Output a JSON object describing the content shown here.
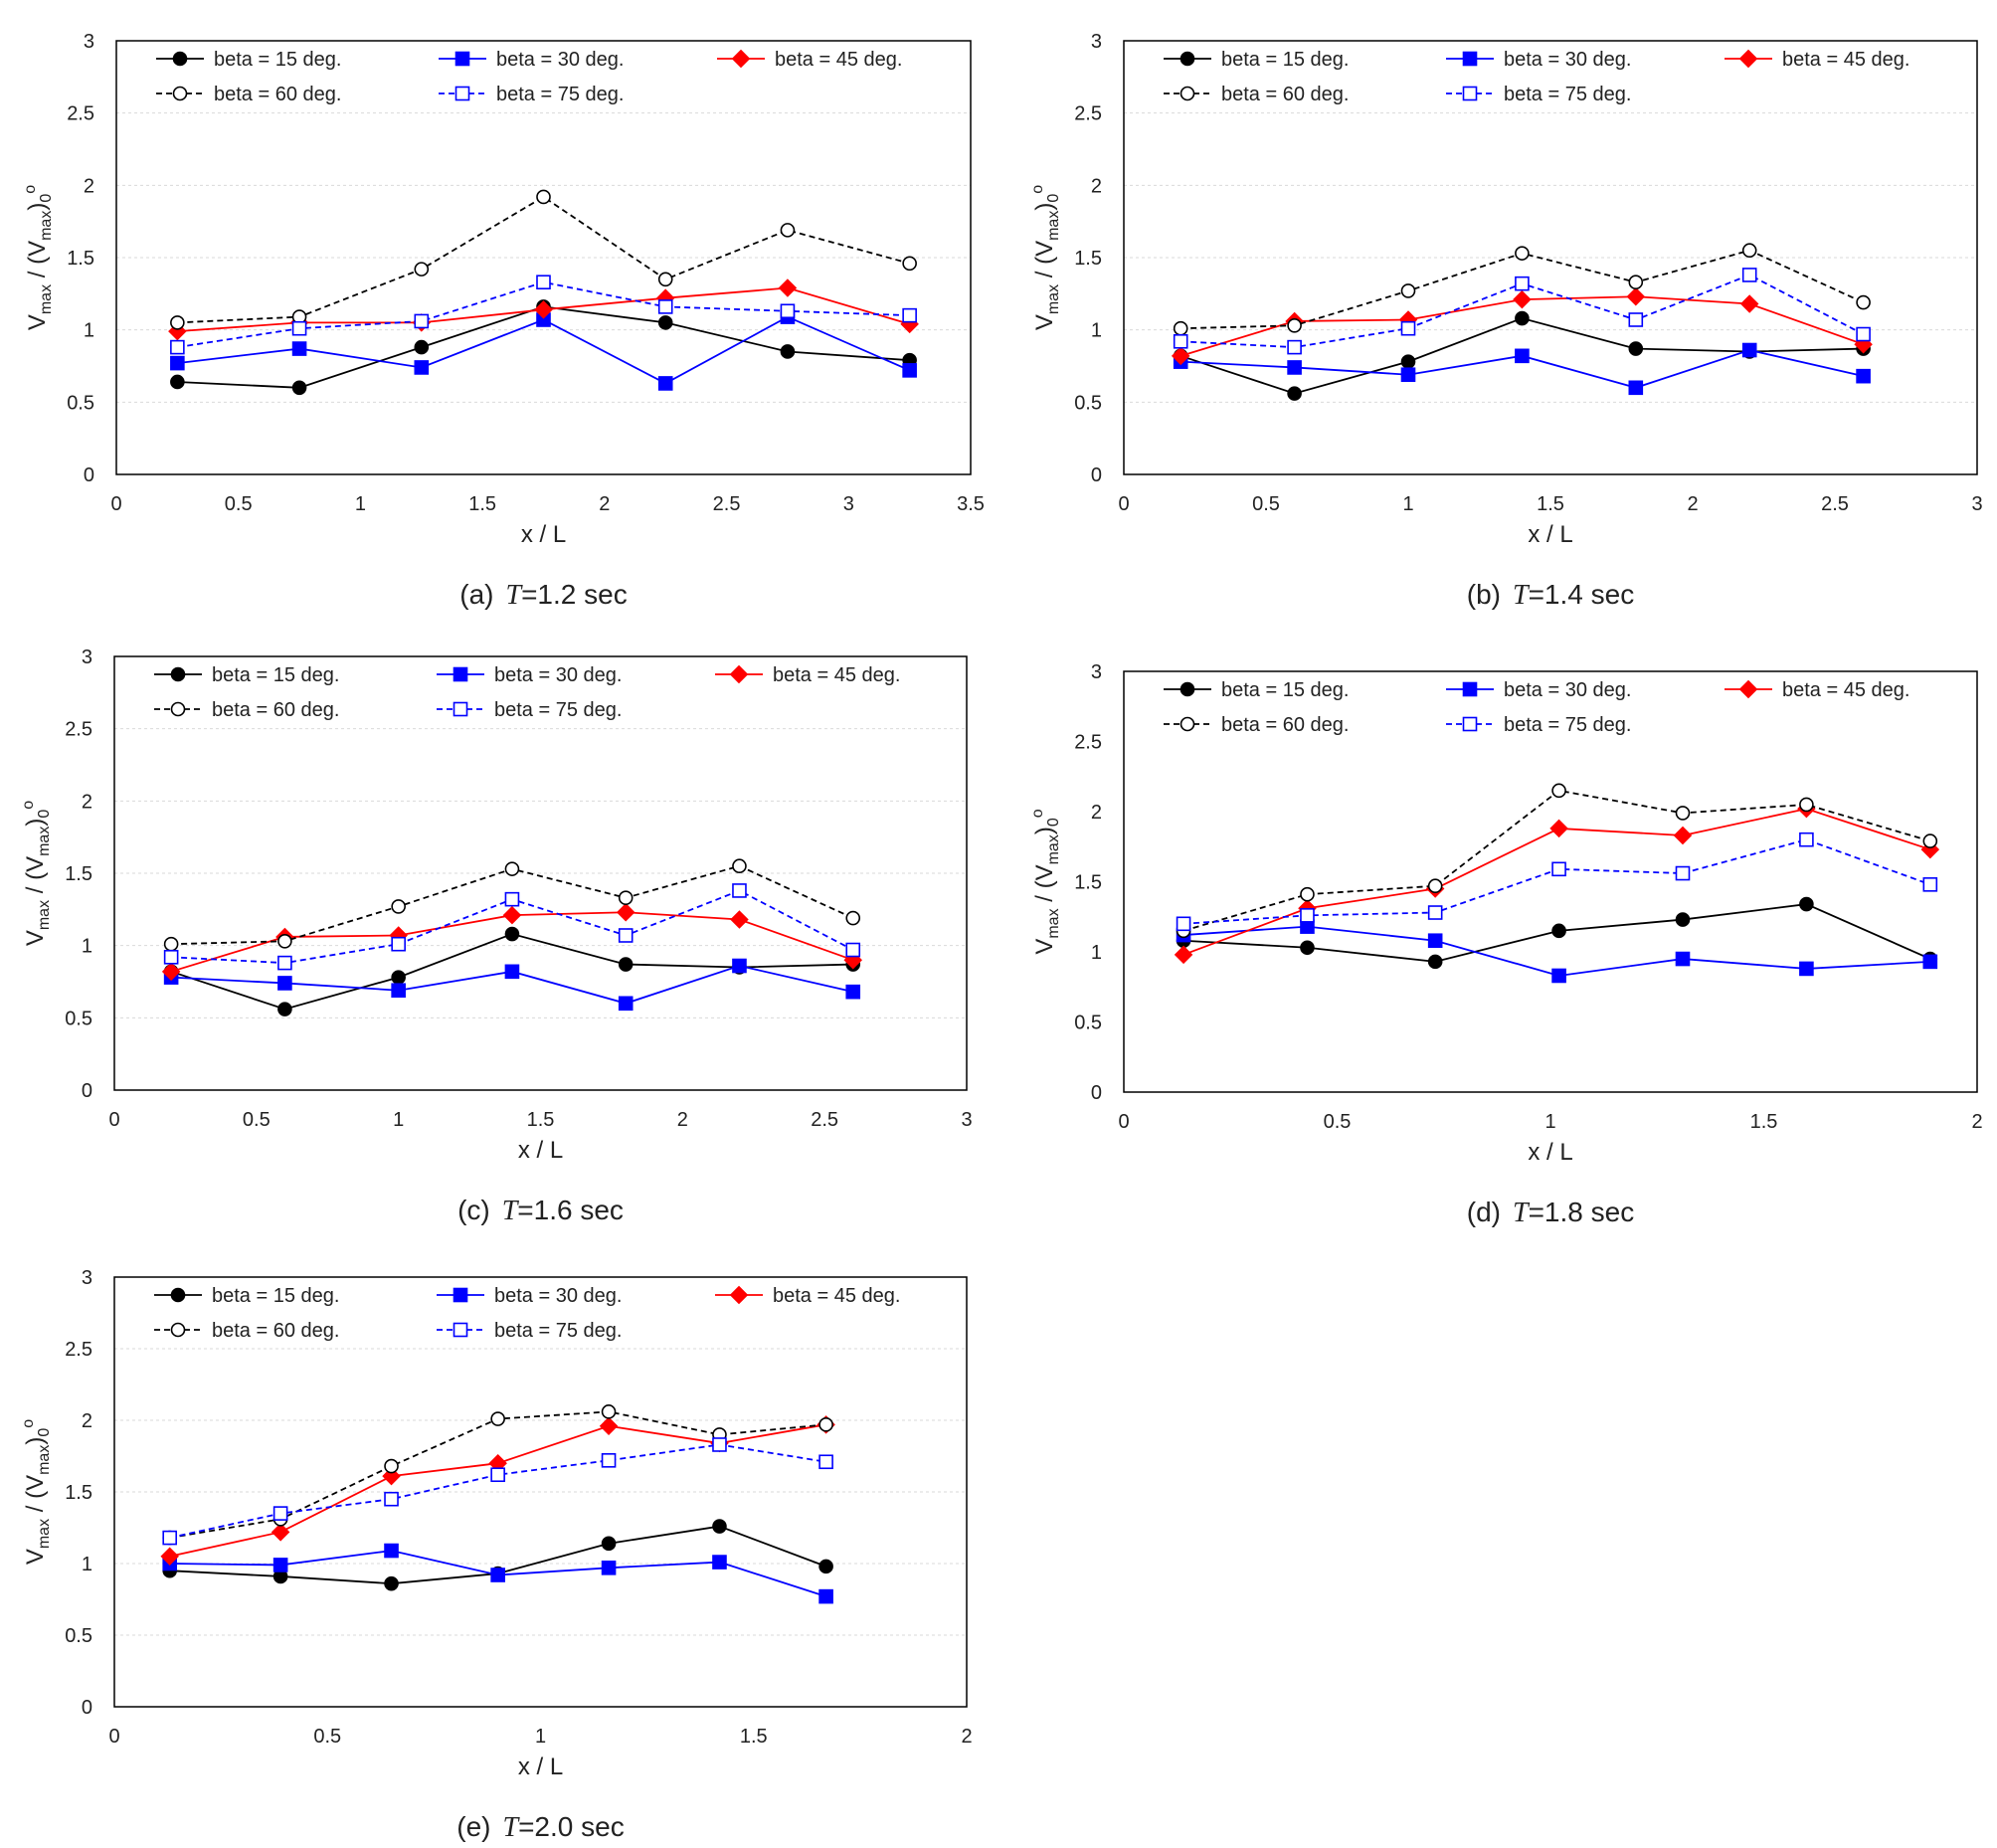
{
  "chart_data": [
    {
      "type": "line",
      "caption_prefix": "(a)",
      "caption_T": "T",
      "caption_value": "=1.2 sec",
      "xlabel": "x / L",
      "ylabel_parts": [
        "V",
        "max",
        " / (V",
        "max",
        ")",
        "0",
        "o"
      ],
      "xlim": [
        0,
        3.5
      ],
      "ylim": [
        0,
        3
      ],
      "xticks": [
        0,
        0.5,
        1,
        1.5,
        2,
        2.5,
        3,
        3.5
      ],
      "xtick_labels": [
        "0",
        "0.5",
        "1",
        "1.5",
        "2",
        "2.5",
        "3",
        "3.5"
      ],
      "yticks": [
        0,
        0.5,
        1,
        1.5,
        2,
        2.5,
        3
      ],
      "ytick_labels": [
        "0",
        "0.5",
        "1",
        "1.5",
        "2",
        "2.5",
        "3"
      ],
      "grid": "horizontal",
      "legend_position": "top",
      "x": [
        0.25,
        0.75,
        1.25,
        1.75,
        2.25,
        2.75,
        3.25
      ],
      "series": [
        {
          "name": "beta = 15 deg.",
          "values": [
            0.64,
            0.6,
            0.88,
            1.16,
            1.05,
            0.85,
            0.79
          ],
          "color": "#000000",
          "marker": "circle",
          "fill": "filled",
          "dash": "solid"
        },
        {
          "name": "beta = 30 deg.",
          "values": [
            0.77,
            0.87,
            0.74,
            1.07,
            0.63,
            1.09,
            0.72
          ],
          "color": "#0000ff",
          "marker": "square",
          "fill": "filled",
          "dash": "solid"
        },
        {
          "name": "beta = 45 deg.",
          "values": [
            0.99,
            1.05,
            1.05,
            1.14,
            1.22,
            1.29,
            1.04
          ],
          "color": "#ff0000",
          "marker": "diamond",
          "fill": "filled",
          "dash": "solid"
        },
        {
          "name": "beta = 60 deg.",
          "values": [
            1.05,
            1.09,
            1.42,
            1.92,
            1.35,
            1.69,
            1.46
          ],
          "color": "#000000",
          "marker": "circle",
          "fill": "open",
          "dash": "dashed"
        },
        {
          "name": "beta = 75 deg.",
          "values": [
            0.88,
            1.01,
            1.06,
            1.33,
            1.16,
            1.13,
            1.1
          ],
          "color": "#0000ff",
          "marker": "square",
          "fill": "open",
          "dash": "dashed"
        }
      ]
    },
    {
      "type": "line",
      "caption_prefix": "(b)",
      "caption_T": "T",
      "caption_value": "=1.4 sec",
      "xlabel": "x / L",
      "ylabel_parts": [
        "V",
        "max",
        " / (V",
        "max",
        ")",
        "0",
        "o"
      ],
      "xlim": [
        0,
        3
      ],
      "ylim": [
        0,
        3
      ],
      "xticks": [
        0,
        0.5,
        1,
        1.5,
        2,
        2.5,
        3
      ],
      "xtick_labels": [
        "0",
        "0.5",
        "1",
        "1.5",
        "2",
        "2.5",
        "3"
      ],
      "yticks": [
        0,
        0.5,
        1,
        1.5,
        2,
        2.5,
        3
      ],
      "ytick_labels": [
        "0",
        "0.5",
        "1",
        "1.5",
        "2",
        "2.5",
        "3"
      ],
      "grid": "horizontal",
      "legend_position": "top",
      "x": [
        0.2,
        0.6,
        1.0,
        1.4,
        1.8,
        2.2,
        2.6
      ],
      "series": [
        {
          "name": "beta = 15 deg.",
          "values": [
            0.82,
            0.56,
            0.78,
            1.08,
            0.87,
            0.85,
            0.87
          ],
          "color": "#000000",
          "marker": "circle",
          "fill": "filled",
          "dash": "solid"
        },
        {
          "name": "beta = 30 deg.",
          "values": [
            0.78,
            0.74,
            0.69,
            0.82,
            0.6,
            0.86,
            0.68
          ],
          "color": "#0000ff",
          "marker": "square",
          "fill": "filled",
          "dash": "solid"
        },
        {
          "name": "beta = 45 deg.",
          "values": [
            0.82,
            1.06,
            1.07,
            1.21,
            1.23,
            1.18,
            0.9
          ],
          "color": "#ff0000",
          "marker": "diamond",
          "fill": "filled",
          "dash": "solid"
        },
        {
          "name": "beta = 60 deg.",
          "values": [
            1.01,
            1.03,
            1.27,
            1.53,
            1.33,
            1.55,
            1.19
          ],
          "color": "#000000",
          "marker": "circle",
          "fill": "open",
          "dash": "dashed"
        },
        {
          "name": "beta = 75 deg.",
          "values": [
            0.92,
            0.88,
            1.01,
            1.32,
            1.07,
            1.38,
            0.97
          ],
          "color": "#0000ff",
          "marker": "square",
          "fill": "open",
          "dash": "dashed"
        }
      ]
    },
    {
      "type": "line",
      "caption_prefix": "(c)",
      "caption_T": "T",
      "caption_value": "=1.6 sec",
      "xlabel": "x / L",
      "ylabel_parts": [
        "V",
        "max",
        " / (V",
        "max",
        ")",
        "0",
        "o"
      ],
      "xlim": [
        0,
        3
      ],
      "ylim": [
        0,
        3
      ],
      "xticks": [
        0,
        0.5,
        1,
        1.5,
        2,
        2.5,
        3
      ],
      "xtick_labels": [
        "0",
        "0.5",
        "1",
        "1.5",
        "2",
        "2.5",
        "3"
      ],
      "yticks": [
        0,
        0.5,
        1,
        1.5,
        2,
        2.5,
        3
      ],
      "ytick_labels": [
        "0",
        "0.5",
        "1",
        "1.5",
        "2",
        "2.5",
        "3"
      ],
      "grid": "horizontal",
      "legend_position": "top",
      "x": [
        0.2,
        0.6,
        1.0,
        1.4,
        1.8,
        2.2,
        2.6
      ],
      "series": [
        {
          "name": "beta = 15 deg.",
          "values": [
            0.82,
            0.56,
            0.78,
            1.08,
            0.87,
            0.85,
            0.87
          ],
          "color": "#000000",
          "marker": "circle",
          "fill": "filled",
          "dash": "solid"
        },
        {
          "name": "beta = 30 deg.",
          "values": [
            0.78,
            0.74,
            0.69,
            0.82,
            0.6,
            0.86,
            0.68
          ],
          "color": "#0000ff",
          "marker": "square",
          "fill": "filled",
          "dash": "solid"
        },
        {
          "name": "beta = 45 deg.",
          "values": [
            0.82,
            1.06,
            1.07,
            1.21,
            1.23,
            1.18,
            0.9
          ],
          "color": "#ff0000",
          "marker": "diamond",
          "fill": "filled",
          "dash": "solid"
        },
        {
          "name": "beta = 60 deg.",
          "values": [
            1.01,
            1.03,
            1.27,
            1.53,
            1.33,
            1.55,
            1.19
          ],
          "color": "#000000",
          "marker": "circle",
          "fill": "open",
          "dash": "dashed"
        },
        {
          "name": "beta = 75 deg.",
          "values": [
            0.92,
            0.88,
            1.01,
            1.32,
            1.07,
            1.38,
            0.97
          ],
          "color": "#0000ff",
          "marker": "square",
          "fill": "open",
          "dash": "dashed"
        }
      ]
    },
    {
      "type": "line",
      "caption_prefix": "(d)",
      "caption_T": "T",
      "caption_value": "=1.8 sec",
      "xlabel": "x / L",
      "ylabel_parts": [
        "V",
        "max",
        " / (V",
        "max",
        ")",
        "0",
        "o"
      ],
      "xlim": [
        0,
        2
      ],
      "ylim": [
        0,
        3
      ],
      "xticks": [
        0,
        0.5,
        1,
        1.5,
        2
      ],
      "xtick_labels": [
        "0",
        "0.5",
        "1",
        "1.5",
        "2"
      ],
      "yticks": [
        0,
        0.5,
        1,
        1.5,
        2,
        2.5,
        3
      ],
      "ytick_labels": [
        "0",
        "0.5",
        "1",
        "1.5",
        "2",
        "2.5",
        "3"
      ],
      "grid": "none",
      "legend_position": "top",
      "x": [
        0.14,
        0.43,
        0.73,
        1.02,
        1.31,
        1.6,
        1.89
      ],
      "series": [
        {
          "name": "beta = 15 deg.",
          "values": [
            1.08,
            1.03,
            0.93,
            1.15,
            1.23,
            1.34,
            0.95
          ],
          "color": "#000000",
          "marker": "circle",
          "fill": "filled",
          "dash": "solid"
        },
        {
          "name": "beta = 30 deg.",
          "values": [
            1.12,
            1.18,
            1.08,
            0.83,
            0.95,
            0.88,
            0.93
          ],
          "color": "#0000ff",
          "marker": "square",
          "fill": "filled",
          "dash": "solid"
        },
        {
          "name": "beta = 45 deg.",
          "values": [
            0.98,
            1.31,
            1.45,
            1.88,
            1.83,
            2.02,
            1.73
          ],
          "color": "#ff0000",
          "marker": "diamond",
          "fill": "filled",
          "dash": "solid"
        },
        {
          "name": "beta = 60 deg.",
          "values": [
            1.15,
            1.41,
            1.47,
            2.15,
            1.99,
            2.05,
            1.79
          ],
          "color": "#000000",
          "marker": "circle",
          "fill": "open",
          "dash": "dashed"
        },
        {
          "name": "beta = 75 deg.",
          "values": [
            1.2,
            1.26,
            1.28,
            1.59,
            1.56,
            1.8,
            1.48
          ],
          "color": "#0000ff",
          "marker": "square",
          "fill": "open",
          "dash": "dashed"
        }
      ]
    },
    {
      "type": "line",
      "caption_prefix": "(e)",
      "caption_T": "T",
      "caption_value": "=2.0 sec",
      "xlabel": "x / L",
      "ylabel_parts": [
        "V",
        "max",
        " / (V",
        "max",
        ")",
        "0",
        "o"
      ],
      "xlim": [
        0,
        2
      ],
      "ylim": [
        0,
        3
      ],
      "xticks": [
        0,
        0.5,
        1,
        1.5,
        2
      ],
      "xtick_labels": [
        "0",
        "0.5",
        "1",
        "1.5",
        "2"
      ],
      "yticks": [
        0,
        0.5,
        1,
        1.5,
        2,
        2.5,
        3
      ],
      "ytick_labels": [
        "0",
        "0.5",
        "1",
        "1.5",
        "2",
        "2.5",
        "3"
      ],
      "grid": "horizontal",
      "legend_position": "top",
      "x": [
        0.13,
        0.39,
        0.65,
        0.9,
        1.16,
        1.42,
        1.67
      ],
      "series": [
        {
          "name": "beta = 15 deg.",
          "values": [
            0.95,
            0.91,
            0.86,
            0.93,
            1.14,
            1.26,
            0.98
          ],
          "color": "#000000",
          "marker": "circle",
          "fill": "filled",
          "dash": "solid"
        },
        {
          "name": "beta = 30 deg.",
          "values": [
            1.0,
            0.99,
            1.09,
            0.92,
            0.97,
            1.01,
            0.77
          ],
          "color": "#0000ff",
          "marker": "square",
          "fill": "filled",
          "dash": "solid"
        },
        {
          "name": "beta = 45 deg.",
          "values": [
            1.05,
            1.22,
            1.61,
            1.7,
            1.96,
            1.84,
            1.97
          ],
          "color": "#ff0000",
          "marker": "diamond",
          "fill": "filled",
          "dash": "solid"
        },
        {
          "name": "beta = 60 deg.",
          "values": [
            1.18,
            1.31,
            1.68,
            2.01,
            2.06,
            1.9,
            1.97
          ],
          "color": "#000000",
          "marker": "circle",
          "fill": "open",
          "dash": "dashed"
        },
        {
          "name": "beta = 75 deg.",
          "values": [
            1.18,
            1.35,
            1.45,
            1.62,
            1.72,
            1.83,
            1.71
          ],
          "color": "#0000ff",
          "marker": "square",
          "fill": "open",
          "dash": "dashed"
        }
      ]
    }
  ]
}
